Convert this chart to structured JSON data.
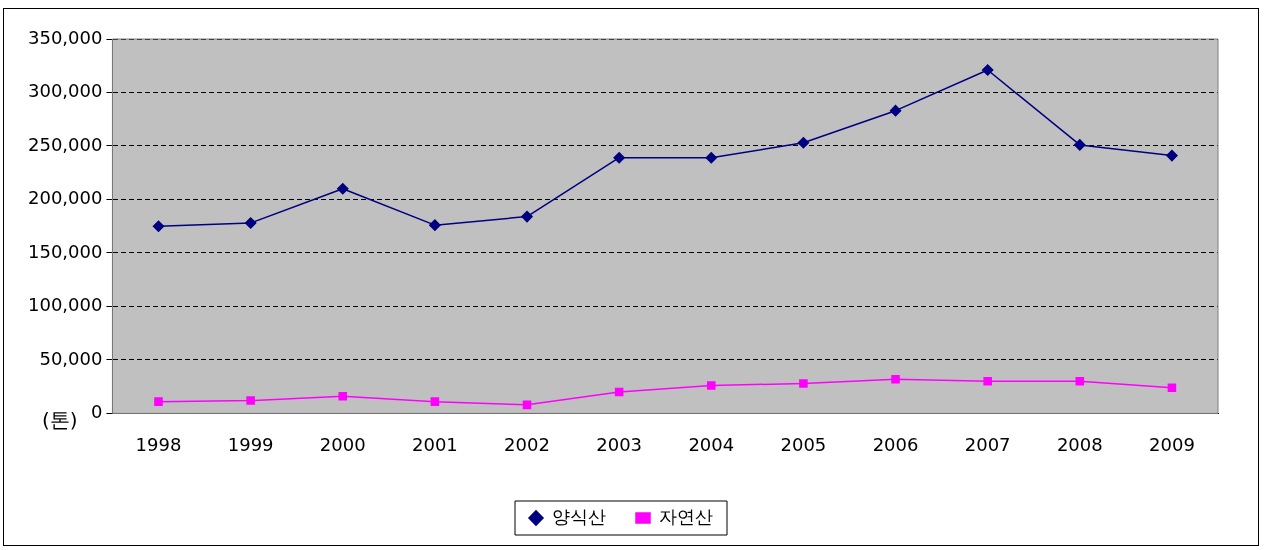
{
  "chart_data": {
    "type": "line",
    "ylabel": "(톤)",
    "categories": [
      "1998",
      "1999",
      "2000",
      "2001",
      "2002",
      "2003",
      "2004",
      "2005",
      "2006",
      "2007",
      "2008",
      "2009"
    ],
    "series": [
      {
        "name": "양식산",
        "color": "#000080",
        "marker": "diamond",
        "values": [
          175000,
          178000,
          210000,
          176000,
          184000,
          239000,
          239000,
          253000,
          283000,
          321000,
          251000,
          241000
        ]
      },
      {
        "name": "자연산",
        "color": "#ff00ff",
        "marker": "square",
        "values": [
          11000,
          12000,
          16000,
          11000,
          8000,
          20000,
          26000,
          28000,
          32000,
          30000,
          30000,
          24000
        ]
      }
    ],
    "ylim": [
      0,
      350000
    ],
    "yticks": [
      {
        "value": 0,
        "label": "0"
      },
      {
        "value": 50000,
        "label": "50,000"
      },
      {
        "value": 100000,
        "label": "100,000"
      },
      {
        "value": 150000,
        "label": "150,000"
      },
      {
        "value": 200000,
        "label": "200,000"
      },
      {
        "value": 250000,
        "label": "250,000"
      },
      {
        "value": 300000,
        "label": "300,000"
      },
      {
        "value": 350000,
        "label": "350,000"
      }
    ],
    "grid": "y",
    "legend": "bottom",
    "line_style": "solid"
  }
}
